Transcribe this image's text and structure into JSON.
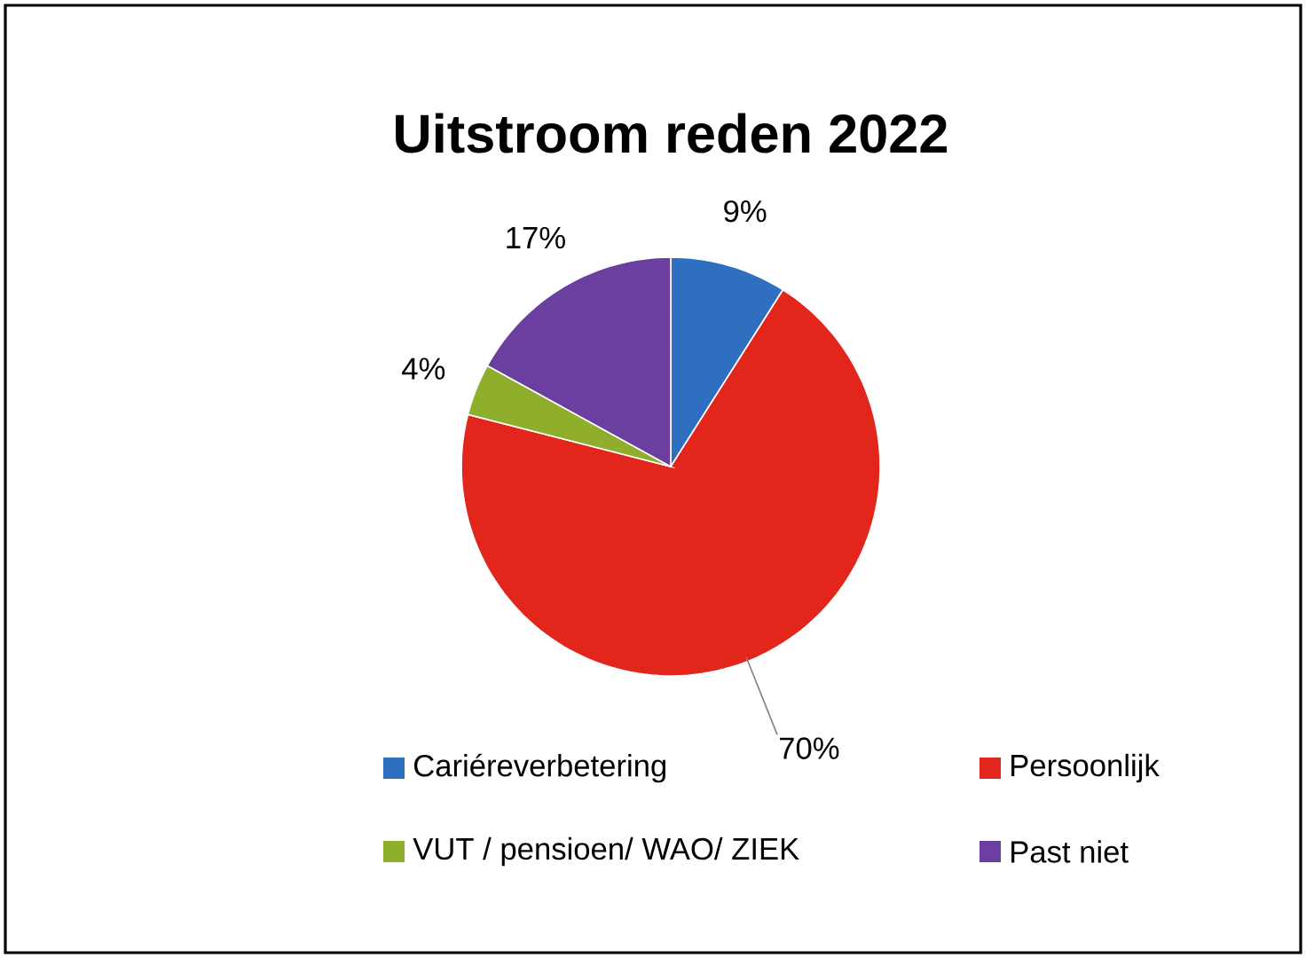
{
  "chart_data": {
    "type": "pie",
    "title": "Uitstroom reden 2022",
    "categories": [
      "Cariéreverbetering",
      "Persoonlijk",
      "VUT / pensioen/ WAO/ ZIEK",
      "Past niet"
    ],
    "values": [
      9,
      70,
      4,
      17
    ],
    "value_labels": [
      "9%",
      "70%",
      "4%",
      "17%"
    ],
    "colors": [
      "#2f6fc0",
      "#e2261c",
      "#8fae2c",
      "#6b3fa0"
    ],
    "legend": "bottom"
  }
}
